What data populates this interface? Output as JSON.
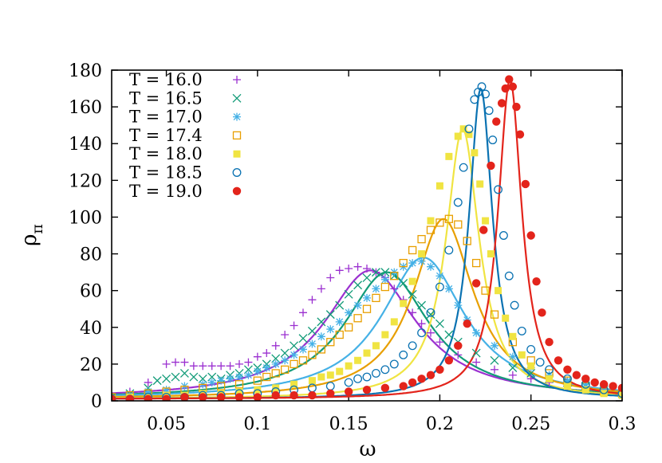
{
  "chart_data": {
    "type": "scatter",
    "title": "",
    "xlabel": "ω",
    "ylabel": "ρ",
    "ylabel_subscript": "π",
    "xlim": [
      0.02,
      0.3
    ],
    "ylim": [
      0,
      180
    ],
    "x_ticks": [
      0.05,
      0.1,
      0.15,
      0.2,
      0.25,
      0.3
    ],
    "x_tick_labels": [
      "0.05",
      "0.1",
      "0.15",
      "0.2",
      "0.25",
      "0.3"
    ],
    "y_ticks": [
      0,
      20,
      40,
      60,
      80,
      100,
      120,
      140,
      160,
      180
    ],
    "y_tick_labels": [
      "0",
      "20",
      "40",
      "60",
      "80",
      "100",
      "120",
      "140",
      "160",
      "180"
    ],
    "legend_position": "top-left",
    "series": [
      {
        "name": "T = 16.0",
        "color": "#9b30d0",
        "marker": "plus",
        "x": [
          0.02,
          0.03,
          0.04,
          0.05,
          0.055,
          0.06,
          0.065,
          0.07,
          0.075,
          0.08,
          0.085,
          0.09,
          0.095,
          0.1,
          0.105,
          0.11,
          0.115,
          0.12,
          0.125,
          0.13,
          0.135,
          0.14,
          0.145,
          0.15,
          0.155,
          0.16,
          0.165,
          0.17,
          0.175,
          0.18,
          0.185,
          0.19,
          0.195,
          0.2,
          0.21,
          0.22,
          0.23,
          0.24,
          0.25,
          0.26,
          0.27,
          0.28,
          0.29,
          0.3
        ],
        "y": [
          2,
          5,
          10,
          20,
          21,
          21,
          19,
          19,
          19,
          19,
          19,
          20,
          21,
          24,
          26,
          30,
          36,
          41,
          48,
          55,
          61,
          67,
          71,
          72,
          73,
          72,
          70,
          67,
          61,
          55,
          48,
          42,
          37,
          32,
          25,
          21,
          17,
          14,
          12,
          10,
          8,
          7,
          6,
          5
        ],
        "fit_peak": 0.162,
        "fit_height": 70,
        "fit_width": 0.0309
      },
      {
        "name": "T = 16.5",
        "color": "#129b78",
        "marker": "cross",
        "x": [
          0.02,
          0.03,
          0.04,
          0.045,
          0.05,
          0.055,
          0.06,
          0.065,
          0.07,
          0.075,
          0.08,
          0.085,
          0.09,
          0.095,
          0.1,
          0.105,
          0.11,
          0.115,
          0.12,
          0.125,
          0.13,
          0.135,
          0.14,
          0.145,
          0.15,
          0.155,
          0.16,
          0.165,
          0.17,
          0.175,
          0.18,
          0.185,
          0.19,
          0.195,
          0.2,
          0.205,
          0.21,
          0.22,
          0.23,
          0.24,
          0.25,
          0.26,
          0.27,
          0.28,
          0.29,
          0.3
        ],
        "y": [
          2,
          4,
          7,
          11,
          12,
          13,
          15,
          13,
          12,
          13,
          12,
          14,
          15,
          17,
          18,
          20,
          23,
          26,
          30,
          34,
          38,
          43,
          47,
          52,
          58,
          63,
          67,
          70,
          70,
          68,
          64,
          58,
          52,
          47,
          42,
          36,
          32,
          26,
          22,
          18,
          15,
          12,
          10,
          8,
          6,
          5
        ],
        "fit_peak": 0.171,
        "fit_height": 69,
        "fit_width": 0.0284
      },
      {
        "name": "T = 17.0",
        "color": "#45b1e6",
        "marker": "star",
        "x": [
          0.02,
          0.03,
          0.04,
          0.05,
          0.06,
          0.07,
          0.075,
          0.08,
          0.085,
          0.09,
          0.095,
          0.1,
          0.105,
          0.11,
          0.115,
          0.12,
          0.125,
          0.13,
          0.135,
          0.14,
          0.145,
          0.15,
          0.155,
          0.16,
          0.165,
          0.17,
          0.175,
          0.18,
          0.185,
          0.19,
          0.195,
          0.2,
          0.205,
          0.21,
          0.215,
          0.22,
          0.23,
          0.24,
          0.25,
          0.26,
          0.27,
          0.28,
          0.29,
          0.3
        ],
        "y": [
          1,
          3,
          5,
          6,
          8,
          9,
          10,
          11,
          12,
          13,
          14,
          16,
          18,
          20,
          22,
          25,
          28,
          31,
          35,
          39,
          43,
          48,
          52,
          56,
          61,
          66,
          70,
          73,
          75,
          76,
          73,
          68,
          61,
          52,
          44,
          37,
          30,
          24,
          18,
          14,
          11,
          9,
          7,
          5
        ],
        "fit_peak": 0.191,
        "fit_height": 77,
        "fit_width": 0.0276
      },
      {
        "name": "T = 17.4",
        "color": "#e89f00",
        "marker": "square",
        "x": [
          0.02,
          0.03,
          0.04,
          0.05,
          0.06,
          0.07,
          0.08,
          0.09,
          0.1,
          0.105,
          0.11,
          0.115,
          0.12,
          0.125,
          0.13,
          0.135,
          0.14,
          0.145,
          0.15,
          0.155,
          0.16,
          0.165,
          0.17,
          0.175,
          0.18,
          0.185,
          0.19,
          0.195,
          0.2,
          0.205,
          0.21,
          0.215,
          0.22,
          0.225,
          0.23,
          0.24,
          0.25,
          0.26,
          0.27,
          0.28,
          0.29,
          0.3
        ],
        "y": [
          2,
          3,
          4,
          5,
          6,
          7,
          8,
          9,
          11,
          13,
          15,
          17,
          20,
          22,
          25,
          28,
          32,
          36,
          40,
          45,
          50,
          56,
          62,
          68,
          75,
          82,
          88,
          93,
          97,
          99,
          96,
          87,
          75,
          60,
          47,
          32,
          22,
          15,
          11,
          8,
          5,
          4
        ],
        "fit_peak": 0.202,
        "fit_height": 98,
        "fit_width": 0.0201
      },
      {
        "name": "T = 18.0",
        "color": "#f0e442",
        "marker": "filled-square",
        "x": [
          0.02,
          0.03,
          0.04,
          0.05,
          0.06,
          0.07,
          0.08,
          0.09,
          0.1,
          0.11,
          0.12,
          0.13,
          0.135,
          0.14,
          0.145,
          0.15,
          0.155,
          0.16,
          0.165,
          0.17,
          0.175,
          0.18,
          0.185,
          0.19,
          0.195,
          0.2,
          0.205,
          0.21,
          0.213,
          0.216,
          0.219,
          0.222,
          0.225,
          0.228,
          0.232,
          0.236,
          0.24,
          0.245,
          0.25,
          0.26,
          0.27,
          0.28,
          0.29,
          0.3
        ],
        "y": [
          1,
          2,
          2,
          3,
          3,
          4,
          4,
          5,
          6,
          7,
          9,
          11,
          13,
          14,
          16,
          19,
          22,
          26,
          30,
          36,
          43,
          53,
          65,
          80,
          98,
          117,
          133,
          144,
          148,
          145,
          135,
          118,
          98,
          80,
          60,
          45,
          35,
          25,
          19,
          12,
          8,
          6,
          4,
          3
        ],
        "fit_peak": 0.2125,
        "fit_height": 147,
        "fit_width": 0.0111
      },
      {
        "name": "T = 18.5",
        "color": "#0a72b2",
        "marker": "circle",
        "x": [
          0.02,
          0.03,
          0.04,
          0.05,
          0.06,
          0.07,
          0.08,
          0.09,
          0.1,
          0.11,
          0.12,
          0.13,
          0.14,
          0.15,
          0.155,
          0.16,
          0.165,
          0.17,
          0.175,
          0.18,
          0.185,
          0.19,
          0.195,
          0.2,
          0.205,
          0.21,
          0.213,
          0.216,
          0.219,
          0.221,
          0.223,
          0.225,
          0.227,
          0.229,
          0.232,
          0.235,
          0.238,
          0.241,
          0.245,
          0.25,
          0.255,
          0.26,
          0.27,
          0.28,
          0.29,
          0.3
        ],
        "y": [
          1,
          1,
          2,
          2,
          2,
          3,
          3,
          4,
          4,
          5,
          6,
          7,
          8,
          10,
          12,
          13,
          15,
          17,
          20,
          25,
          30,
          37,
          48,
          62,
          82,
          108,
          127,
          148,
          164,
          168,
          171,
          167,
          158,
          142,
          115,
          90,
          68,
          52,
          38,
          28,
          21,
          17,
          12,
          9,
          6,
          4
        ],
        "fit_peak": 0.2225,
        "fit_height": 169,
        "fit_width": 0.0078
      },
      {
        "name": "T = 19.0",
        "color": "#e3241b",
        "marker": "filled-circle",
        "x": [
          0.02,
          0.03,
          0.04,
          0.05,
          0.06,
          0.07,
          0.08,
          0.09,
          0.1,
          0.11,
          0.12,
          0.13,
          0.14,
          0.15,
          0.16,
          0.17,
          0.18,
          0.185,
          0.19,
          0.195,
          0.2,
          0.205,
          0.21,
          0.215,
          0.22,
          0.224,
          0.228,
          0.231,
          0.234,
          0.236,
          0.238,
          0.24,
          0.242,
          0.244,
          0.247,
          0.25,
          0.253,
          0.256,
          0.26,
          0.265,
          0.27,
          0.275,
          0.28,
          0.285,
          0.29,
          0.295,
          0.3
        ],
        "y": [
          1,
          1,
          1,
          1,
          2,
          2,
          2,
          2,
          2,
          3,
          3,
          3,
          4,
          5,
          6,
          7,
          8,
          10,
          12,
          14,
          17,
          22,
          30,
          42,
          64,
          93,
          128,
          152,
          162,
          170,
          175,
          171,
          160,
          145,
          118,
          90,
          65,
          48,
          32,
          22,
          17,
          14,
          12,
          10,
          9,
          8,
          7
        ],
        "fit_peak": 0.2385,
        "fit_height": 174,
        "fit_width": 0.0079
      }
    ]
  }
}
